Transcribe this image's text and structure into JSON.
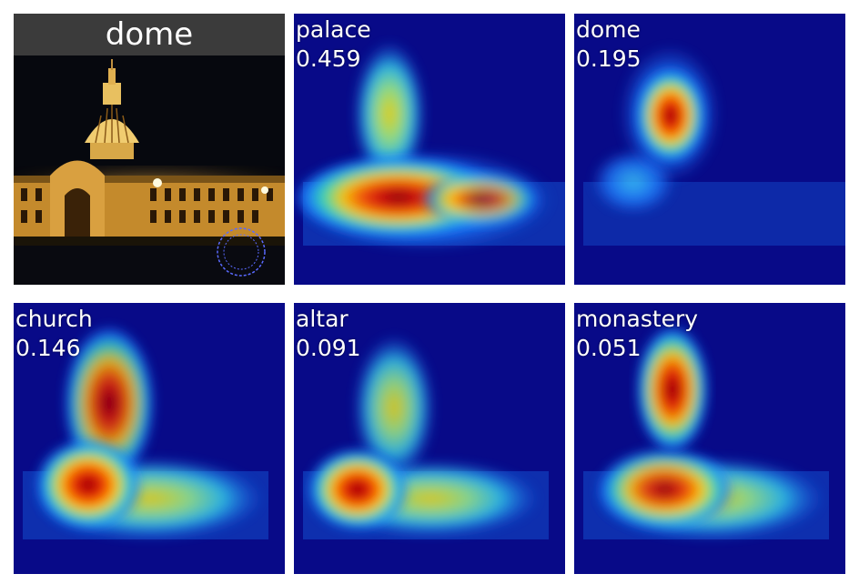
{
  "original": {
    "title": "dome"
  },
  "predictions": [
    {
      "label": "palace",
      "score": "0.459"
    },
    {
      "label": "dome",
      "score": "0.195"
    },
    {
      "label": "church",
      "score": "0.146"
    },
    {
      "label": "altar",
      "score": "0.091"
    },
    {
      "label": "monastery",
      "score": "0.051"
    }
  ]
}
